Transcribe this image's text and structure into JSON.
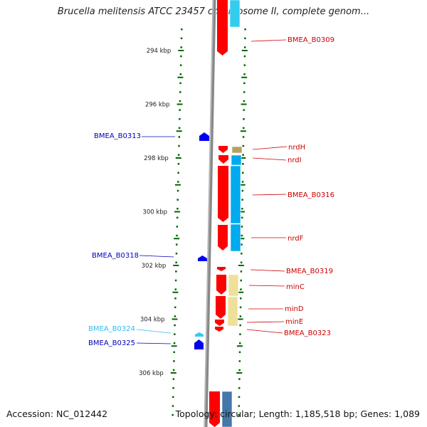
{
  "title": "Brucella melitensis ATCC 23457 chromosome II, complete genom...",
  "footer": {
    "accession": "Accession: NC_012442",
    "info": "Topology: circular; Length: 1,185,518 bp; Genes: 1,089"
  },
  "axis": {
    "unit": "kbp",
    "ticks": [
      {
        "label": "294 kbp",
        "kbp": 294
      },
      {
        "label": "296 kbp",
        "kbp": 296
      },
      {
        "label": "298 kbp",
        "kbp": 298
      },
      {
        "label": "300 kbp",
        "kbp": 300
      },
      {
        "label": "302 kbp",
        "kbp": 302
      },
      {
        "label": "304 kbp",
        "kbp": 304
      },
      {
        "label": "306 kbp",
        "kbp": 306
      }
    ]
  },
  "colors": {
    "forward_gene": "#ff0000",
    "reverse_gene": "#0000ee",
    "reverse_gene_light": "#33ccee",
    "cds_blue": "#00aaee",
    "cds_yellow": "#eee099",
    "cds_tan": "#b8a060",
    "cds_steel": "#4477aa",
    "tick": "#006600",
    "backbone": "#888888",
    "label_forward": "#cc0000",
    "label_reverse": "#0000bb",
    "label_reverse_light": "#33bbee"
  },
  "genes_forward": [
    {
      "name": "BMEA_B0309",
      "color": "label_forward"
    },
    {
      "name": "nrdH",
      "color": "label_forward"
    },
    {
      "name": "nrdI",
      "color": "label_forward"
    },
    {
      "name": "BMEA_B0316",
      "color": "label_forward"
    },
    {
      "name": "nrdF",
      "color": "label_forward"
    },
    {
      "name": "BMEA_B0319",
      "color": "label_forward"
    },
    {
      "name": "minC",
      "color": "label_forward"
    },
    {
      "name": "minD",
      "color": "label_forward"
    },
    {
      "name": "minE",
      "color": "label_forward"
    },
    {
      "name": "BMEA_B0323",
      "color": "label_forward"
    }
  ],
  "genes_reverse": [
    {
      "name": "BMEA_B0313",
      "color": "label_reverse"
    },
    {
      "name": "BMEA_B0318",
      "color": "label_reverse"
    },
    {
      "name": "BMEA_B0324",
      "color": "label_reverse_light"
    },
    {
      "name": "BMEA_B0325",
      "color": "label_reverse"
    }
  ]
}
